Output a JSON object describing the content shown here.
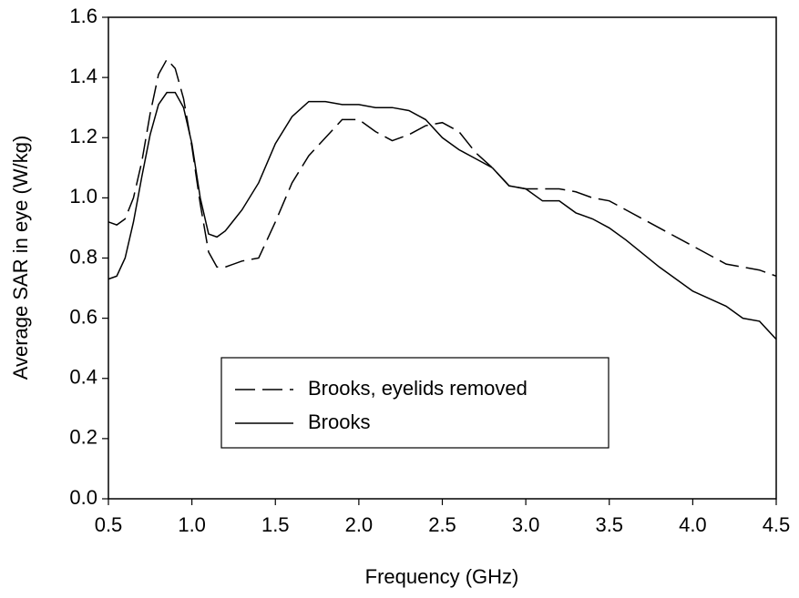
{
  "chart_data": {
    "type": "line",
    "xlabel": "Frequency (GHz)",
    "ylabel": "Average SAR in eye (W/kg)",
    "x": [
      0.5,
      0.55,
      0.6,
      0.65,
      0.7,
      0.75,
      0.8,
      0.85,
      0.9,
      0.95,
      1.0,
      1.05,
      1.1,
      1.15,
      1.2,
      1.3,
      1.4,
      1.5,
      1.6,
      1.7,
      1.8,
      1.9,
      2.0,
      2.1,
      2.2,
      2.3,
      2.4,
      2.5,
      2.6,
      2.7,
      2.8,
      2.9,
      3.0,
      3.1,
      3.2,
      3.3,
      3.4,
      3.5,
      3.6,
      3.8,
      4.0,
      4.2,
      4.3,
      4.4,
      4.5
    ],
    "series": [
      {
        "name": "Brooks, eyelids removed",
        "color": "#000000",
        "line_style": "dashed",
        "values": [
          0.92,
          0.91,
          0.93,
          1.0,
          1.12,
          1.28,
          1.41,
          1.46,
          1.43,
          1.33,
          1.17,
          0.98,
          0.82,
          0.77,
          0.77,
          0.79,
          0.8,
          0.92,
          1.05,
          1.14,
          1.2,
          1.26,
          1.26,
          1.22,
          1.19,
          1.21,
          1.24,
          1.25,
          1.22,
          1.15,
          1.1,
          1.04,
          1.03,
          1.03,
          1.03,
          1.02,
          1.0,
          0.99,
          0.96,
          0.9,
          0.84,
          0.78,
          0.77,
          0.76,
          0.74
        ]
      },
      {
        "name": "Brooks",
        "color": "#000000",
        "line_style": "solid",
        "values": [
          0.73,
          0.74,
          0.8,
          0.92,
          1.07,
          1.21,
          1.31,
          1.35,
          1.35,
          1.3,
          1.18,
          1.0,
          0.88,
          0.87,
          0.89,
          0.96,
          1.05,
          1.18,
          1.27,
          1.32,
          1.32,
          1.31,
          1.31,
          1.3,
          1.3,
          1.29,
          1.26,
          1.2,
          1.16,
          1.13,
          1.1,
          1.04,
          1.03,
          0.99,
          0.99,
          0.95,
          0.93,
          0.9,
          0.86,
          0.77,
          0.69,
          0.64,
          0.6,
          0.59,
          0.53
        ]
      }
    ],
    "xlim": [
      0.5,
      4.5
    ],
    "xticks": [
      0.5,
      {
        "value": 1,
        "label": "1.0"
      },
      1.5,
      {
        "value": 2,
        "label": "2.0"
      },
      2.5,
      {
        "value": 3,
        "label": "3.0"
      },
      3.5,
      {
        "value": 4,
        "label": "4.0"
      },
      4.5
    ],
    "ylim": [
      0,
      1.6
    ],
    "yticks": [
      {
        "value": 0,
        "label": "0.0"
      },
      0.2,
      0.4,
      0.6,
      0.8,
      {
        "value": 1,
        "label": "1.0"
      },
      1.2,
      1.4,
      1.6
    ],
    "grid": false
  }
}
